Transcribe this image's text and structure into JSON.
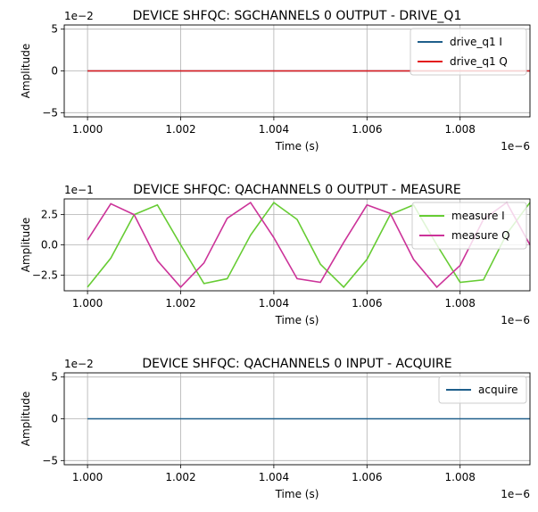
{
  "chart_data": [
    {
      "type": "line",
      "title": "DEVICE SHFQC: SGCHANNELS 0 OUTPUT - DRIVE_Q1",
      "xlabel": "Time (s)",
      "ylabel": "Amplitude",
      "x_offset_label": "1e−6",
      "y_offset_label": "1e−2",
      "xlim": [
        0.9995,
        1.0095
      ],
      "ylim": [
        -5.5,
        5.5
      ],
      "x_ticks": [
        1.0,
        1.002,
        1.004,
        1.006,
        1.008
      ],
      "x_tick_labels": [
        "1.000",
        "1.002",
        "1.004",
        "1.006",
        "1.008"
      ],
      "y_ticks": [
        -5,
        0,
        5
      ],
      "y_tick_labels": [
        "−5",
        "0",
        "5"
      ],
      "grid": true,
      "legend_position": "top-right",
      "series": [
        {
          "name": "drive_q1 I",
          "color": "#1f5f8b",
          "x": [
            1.0,
            1.0095
          ],
          "y": [
            0,
            0
          ]
        },
        {
          "name": "drive_q1 Q",
          "color": "#e31a1c",
          "x": [
            1.0,
            1.0095
          ],
          "y": [
            0,
            0
          ]
        }
      ]
    },
    {
      "type": "line",
      "title": "DEVICE SHFQC: QACHANNELS 0 OUTPUT - MEASURE",
      "xlabel": "Time (s)",
      "ylabel": "Amplitude",
      "x_offset_label": "1e−6",
      "y_offset_label": "1e−1",
      "xlim": [
        0.9995,
        1.0095
      ],
      "ylim": [
        -3.8,
        3.8
      ],
      "x_ticks": [
        1.0,
        1.002,
        1.004,
        1.006,
        1.008
      ],
      "x_tick_labels": [
        "1.000",
        "1.002",
        "1.004",
        "1.006",
        "1.008"
      ],
      "y_ticks": [
        -2.5,
        0,
        2.5
      ],
      "y_tick_labels": [
        "−2.5",
        "0.0",
        "2.5"
      ],
      "grid": true,
      "legend_position": "top-right",
      "series": [
        {
          "name": "measure I",
          "color": "#66cc33",
          "x": [
            1.0,
            1.0005,
            1.001,
            1.0015,
            1.002,
            1.0025,
            1.003,
            1.0035,
            1.004,
            1.0045,
            1.005,
            1.0055,
            1.006,
            1.0065,
            1.007,
            1.0075,
            1.008,
            1.0085,
            1.009,
            1.0095
          ],
          "y": [
            -3.5,
            -1.1,
            2.5,
            3.3,
            0.0,
            -3.2,
            -2.8,
            0.8,
            3.5,
            2.1,
            -1.6,
            -3.5,
            -1.2,
            2.5,
            3.3,
            0.0,
            -3.1,
            -2.9,
            0.9,
            3.5
          ]
        },
        {
          "name": "measure Q",
          "color": "#cc3399",
          "x": [
            1.0,
            1.0005,
            1.001,
            1.0015,
            1.002,
            1.0025,
            1.003,
            1.0035,
            1.004,
            1.0045,
            1.005,
            1.0055,
            1.006,
            1.0065,
            1.007,
            1.0075,
            1.008,
            1.0085,
            1.009,
            1.0095
          ],
          "y": [
            0.4,
            3.4,
            2.5,
            -1.3,
            -3.5,
            -1.5,
            2.2,
            3.5,
            0.6,
            -2.8,
            -3.1,
            0.2,
            3.3,
            2.6,
            -1.2,
            -3.5,
            -1.7,
            2.1,
            3.5,
            0.0
          ]
        }
      ]
    },
    {
      "type": "line",
      "title": "DEVICE SHFQC: QACHANNELS 0 INPUT - ACQUIRE",
      "xlabel": "Time (s)",
      "ylabel": "Amplitude",
      "x_offset_label": "1e−6",
      "y_offset_label": "1e−2",
      "xlim": [
        0.9995,
        1.0095
      ],
      "ylim": [
        -5.5,
        5.5
      ],
      "x_ticks": [
        1.0,
        1.002,
        1.004,
        1.006,
        1.008
      ],
      "x_tick_labels": [
        "1.000",
        "1.002",
        "1.004",
        "1.006",
        "1.008"
      ],
      "y_ticks": [
        -5,
        0,
        5
      ],
      "y_tick_labels": [
        "−5",
        "0",
        "5"
      ],
      "grid": true,
      "legend_position": "top-right",
      "series": [
        {
          "name": "acquire",
          "color": "#1f5f8b",
          "x": [
            1.0,
            1.0095
          ],
          "y": [
            0,
            0
          ]
        }
      ]
    }
  ]
}
